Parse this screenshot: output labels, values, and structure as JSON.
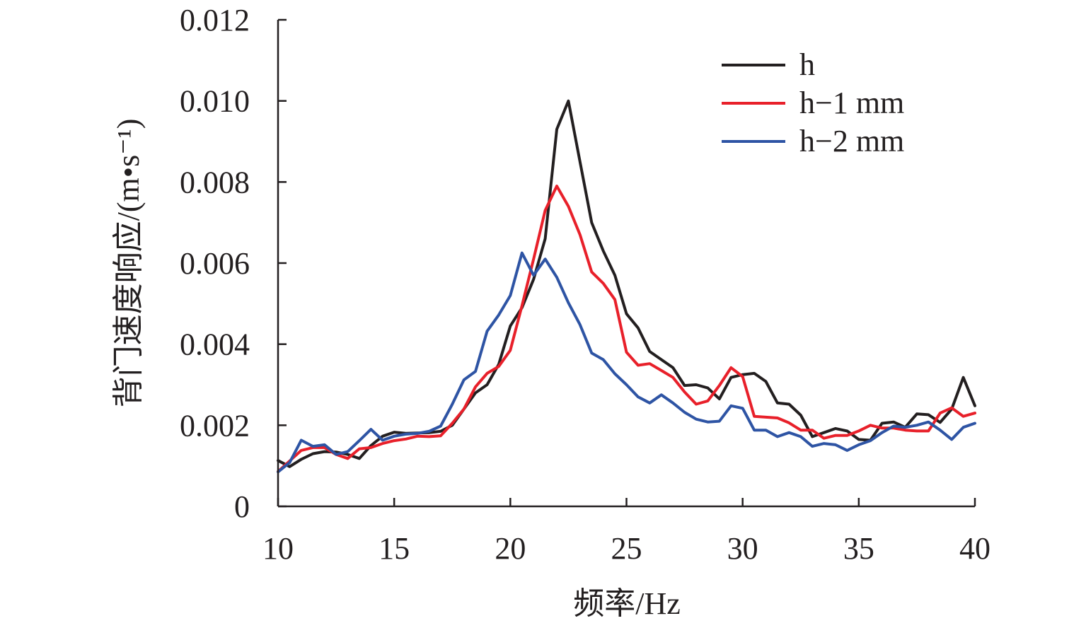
{
  "chart_data": {
    "type": "line",
    "xlabel": "频率/Hz",
    "ylabel": "背门速度响应/(m•s⁻¹)",
    "xlim": [
      10,
      40
    ],
    "ylim": [
      0,
      0.012
    ],
    "xticks": [
      10,
      15,
      20,
      25,
      30,
      35,
      40
    ],
    "xtick_labels": [
      "10",
      "15",
      "20",
      "25",
      "30",
      "35",
      "40"
    ],
    "yticks": [
      0,
      0.002,
      0.004,
      0.006,
      0.008,
      0.01,
      0.012
    ],
    "ytick_labels": [
      "0",
      "0.002",
      "0.004",
      "0.006",
      "0.008",
      "0.010",
      "0.012"
    ],
    "grid": false,
    "legend_position": "top-right",
    "series": [
      {
        "name": "h",
        "color": "#231f20",
        "x": [
          10,
          10.5,
          11,
          11.5,
          12,
          12.5,
          13,
          13.5,
          14,
          14.5,
          15,
          15.5,
          16,
          16.5,
          17,
          17.5,
          18,
          18.5,
          19,
          19.5,
          20,
          20.5,
          21,
          21.5,
          22,
          22.5,
          23,
          23.5,
          24,
          24.5,
          25,
          25.5,
          26,
          26.5,
          27,
          27.5,
          28,
          28.5,
          29,
          29.5,
          30,
          30.5,
          31,
          31.5,
          32,
          32.5,
          33,
          33.5,
          34,
          34.5,
          35,
          35.5,
          36,
          36.5,
          37,
          37.5,
          38,
          38.5,
          39,
          39.5,
          40
        ],
        "y": [
          0.00113,
          0.00098,
          0.00116,
          0.0013,
          0.00135,
          0.00134,
          0.00128,
          0.00118,
          0.0015,
          0.00173,
          0.00183,
          0.0018,
          0.00181,
          0.00182,
          0.00185,
          0.002,
          0.0024,
          0.0028,
          0.003,
          0.0035,
          0.00445,
          0.0049,
          0.0056,
          0.0066,
          0.0093,
          0.01,
          0.0085,
          0.007,
          0.0063,
          0.0057,
          0.00475,
          0.0044,
          0.00382,
          0.00362,
          0.00342,
          0.00298,
          0.003,
          0.00292,
          0.00265,
          0.00318,
          0.00325,
          0.00328,
          0.00308,
          0.00255,
          0.00252,
          0.00225,
          0.00172,
          0.00182,
          0.00192,
          0.00186,
          0.00165,
          0.00163,
          0.00205,
          0.00208,
          0.00195,
          0.00228,
          0.00226,
          0.00207,
          0.0024,
          0.00318,
          0.00248
        ]
      },
      {
        "name": "h−1 mm",
        "color": "#e8202a",
        "x": [
          10,
          10.5,
          11,
          11.5,
          12,
          12.5,
          13,
          13.5,
          14,
          14.5,
          15,
          15.5,
          16,
          16.5,
          17,
          17.5,
          18,
          18.5,
          19,
          19.5,
          20,
          20.5,
          21,
          21.5,
          22,
          22.5,
          23,
          23.5,
          24,
          24.5,
          25,
          25.5,
          26,
          26.5,
          27,
          27.5,
          28,
          28.5,
          29,
          29.5,
          30,
          30.5,
          31,
          31.5,
          32,
          32.5,
          33,
          33.5,
          34,
          34.5,
          35,
          35.5,
          36,
          36.5,
          37,
          37.5,
          38,
          38.5,
          39,
          39.5,
          40
        ],
        "y": [
          0.00086,
          0.00112,
          0.00138,
          0.00145,
          0.00145,
          0.00128,
          0.00118,
          0.00142,
          0.00145,
          0.00155,
          0.00162,
          0.00166,
          0.00173,
          0.00172,
          0.00174,
          0.00205,
          0.0024,
          0.00295,
          0.00328,
          0.00345,
          0.00385,
          0.00495,
          0.0061,
          0.0073,
          0.0079,
          0.0074,
          0.0067,
          0.00578,
          0.0055,
          0.0051,
          0.0038,
          0.00348,
          0.00352,
          0.00335,
          0.00318,
          0.00282,
          0.00252,
          0.0026,
          0.00298,
          0.00342,
          0.0032,
          0.00222,
          0.0022,
          0.00218,
          0.00206,
          0.00188,
          0.00188,
          0.00168,
          0.00175,
          0.00175,
          0.00186,
          0.002,
          0.00193,
          0.00193,
          0.00188,
          0.00186,
          0.00186,
          0.0023,
          0.00243,
          0.00222,
          0.0023
        ]
      },
      {
        "name": "h−2 mm",
        "color": "#2e54a4",
        "x": [
          10,
          10.5,
          11,
          11.5,
          12,
          12.5,
          13,
          13.5,
          14,
          14.5,
          15,
          15.5,
          16,
          16.5,
          17,
          17.5,
          18,
          18.5,
          19,
          19.5,
          20,
          20.5,
          21,
          21.5,
          22,
          22.5,
          23,
          23.5,
          24,
          24.5,
          25,
          25.5,
          26,
          26.5,
          27,
          27.5,
          28,
          28.5,
          29,
          29.5,
          30,
          30.5,
          31,
          31.5,
          32,
          32.5,
          33,
          33.5,
          34,
          34.5,
          35,
          35.5,
          36,
          36.5,
          37,
          37.5,
          38,
          38.5,
          39,
          39.5,
          40
        ],
        "y": [
          0.00085,
          0.00108,
          0.00163,
          0.00148,
          0.00152,
          0.00128,
          0.00135,
          0.00162,
          0.0019,
          0.00163,
          0.00173,
          0.00178,
          0.0018,
          0.00185,
          0.00198,
          0.00252,
          0.00312,
          0.00333,
          0.00432,
          0.00472,
          0.0052,
          0.00625,
          0.0057,
          0.0061,
          0.00565,
          0.00502,
          0.00448,
          0.00378,
          0.00362,
          0.00327,
          0.003,
          0.0027,
          0.00255,
          0.00275,
          0.00255,
          0.00232,
          0.00215,
          0.00208,
          0.0021,
          0.00248,
          0.00242,
          0.00188,
          0.00188,
          0.00172,
          0.00182,
          0.00172,
          0.00148,
          0.00155,
          0.00152,
          0.00138,
          0.00152,
          0.00162,
          0.00182,
          0.00198,
          0.00195,
          0.002,
          0.00208,
          0.00188,
          0.00165,
          0.00195,
          0.00205
        ]
      }
    ]
  }
}
